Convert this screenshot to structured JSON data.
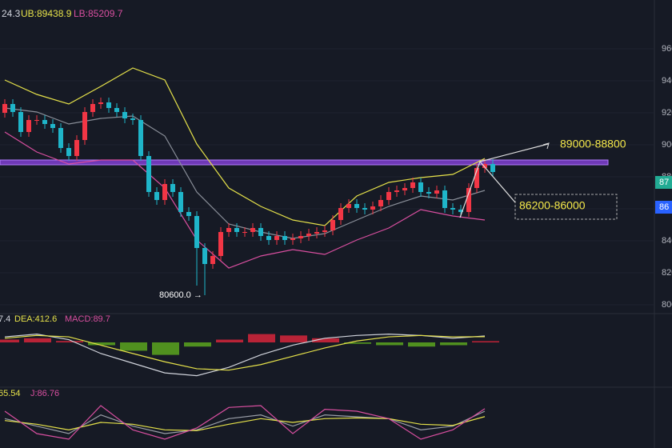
{
  "chart_data": {
    "type": "candlestick",
    "bb_label": "24.3",
    "ub_label": "UB:89438.9",
    "lb_label": "LB:85209.7",
    "categories": [
      null,
      null,
      null,
      null,
      null,
      null,
      null,
      null,
      null,
      null,
      null,
      null,
      null,
      null,
      null,
      null,
      null,
      null,
      null,
      null,
      null,
      null,
      null,
      null,
      null,
      null,
      null,
      null,
      null,
      null,
      null,
      null,
      null,
      null,
      null,
      null,
      null,
      null,
      null,
      null,
      null,
      null,
      null,
      null,
      null,
      null,
      null,
      null,
      null,
      null,
      null,
      null,
      null,
      null,
      null,
      null,
      null,
      null,
      null,
      null,
      null,
      null
    ],
    "open": [
      92000,
      92550,
      92050,
      90800,
      91550,
      91550,
      91300,
      91050,
      89800,
      89300,
      90300,
      92050,
      92550,
      92650,
      92300,
      92050,
      91650,
      91550,
      89300,
      87050,
      86550,
      87550,
      87050,
      85800,
      85550,
      83550,
      82550,
      83050,
      84550,
      84800,
      84550,
      84550,
      84800,
      84300,
      84050,
      84300,
      84050,
      84150,
      84300,
      84450,
      84550,
      84650,
      85300,
      86050,
      86300,
      86050,
      85950,
      86150,
      86550,
      87050,
      87150,
      87300,
      87650,
      87050,
      86950,
      87150,
      86050,
      85950,
      85800,
      87300,
      88550,
      88800
    ],
    "high": [
      92850,
      92850,
      92350,
      91850,
      91850,
      91850,
      91600,
      91350,
      90100,
      90600,
      92350,
      92850,
      92950,
      92950,
      92600,
      92350,
      91950,
      91850,
      89600,
      87350,
      87850,
      87850,
      87350,
      86100,
      85850,
      83850,
      83350,
      84850,
      85100,
      85100,
      84850,
      85100,
      85100,
      84600,
      84600,
      84600,
      84450,
      84600,
      84750,
      84850,
      84950,
      85600,
      86350,
      86600,
      86600,
      86350,
      86450,
      86850,
      87350,
      87450,
      87600,
      87950,
      87950,
      87350,
      87450,
      87450,
      86350,
      86250,
      87600,
      88850,
      89100,
      89100
    ],
    "low": [
      91700,
      91750,
      90500,
      90500,
      91250,
      91000,
      90750,
      89500,
      89000,
      89000,
      90000,
      91750,
      92250,
      92000,
      91750,
      91350,
      91250,
      89000,
      86750,
      86250,
      86250,
      86750,
      85500,
      85250,
      81200,
      80600,
      82250,
      82750,
      84250,
      84250,
      84250,
      84250,
      84000,
      83750,
      83750,
      83750,
      83750,
      83850,
      84000,
      84150,
      84250,
      84350,
      85000,
      85750,
      85750,
      85650,
      85650,
      85850,
      86250,
      86750,
      86850,
      87000,
      86750,
      86650,
      86650,
      85750,
      85650,
      85500,
      85500,
      87000,
      88250,
      88000
    ],
    "close": [
      92550,
      92050,
      90800,
      91550,
      91550,
      91300,
      91050,
      89800,
      89300,
      90300,
      92050,
      92550,
      92650,
      92300,
      92050,
      91650,
      91550,
      89300,
      87050,
      86550,
      87550,
      87050,
      85800,
      85550,
      83550,
      82550,
      83050,
      84550,
      84800,
      84550,
      84550,
      84800,
      84300,
      84050,
      84300,
      84050,
      84150,
      84300,
      84450,
      84550,
      84650,
      85300,
      86050,
      86300,
      86050,
      85950,
      86150,
      86550,
      87050,
      87150,
      87300,
      87650,
      87050,
      86950,
      87150,
      86050,
      85950,
      85800,
      87300,
      88550,
      88800,
      88300
    ],
    "up_color": "#f23645",
    "down_color": "#1fb5c9",
    "ylim": [
      79550,
      99050
    ],
    "yticks": [
      80000,
      82000,
      84000,
      86000,
      88000,
      90000,
      92000,
      94000,
      96000
    ],
    "bands": {
      "x": [
        0,
        4,
        8,
        12,
        16,
        20,
        24,
        28,
        32,
        36,
        40,
        44,
        48,
        52,
        56,
        60
      ],
      "series": [
        {
          "color": "#e6e24a",
          "values": [
            94050,
            93150,
            92550,
            93650,
            94800,
            94050,
            90050,
            87300,
            86150,
            85300,
            84950,
            86800,
            87650,
            87950,
            88150,
            89150
          ]
        },
        {
          "color": "#8a8f99",
          "values": [
            92300,
            92050,
            91300,
            91650,
            91800,
            90550,
            87050,
            85050,
            84550,
            84150,
            84450,
            85300,
            86150,
            86800,
            86550,
            87150
          ]
        },
        {
          "color": "#d94fa0",
          "values": [
            90800,
            89550,
            88800,
            89050,
            89050,
            87300,
            84050,
            82300,
            83050,
            83450,
            83150,
            84050,
            84800,
            85950,
            85550,
            85300
          ]
        }
      ]
    },
    "zone": [
      88750,
      89050
    ],
    "zone_color": "#8e44e8",
    "annotations": [
      "80600.0 →",
      "89000-88800",
      "86200-86000"
    ],
    "price_tags": [
      {
        "label": "87",
        "color": "#22ab94"
      },
      {
        "label": "86",
        "color": "#2962ff"
      }
    ],
    "macd": {
      "labels": [
        "7.4",
        "DEA:412.6",
        "MACD:89.7"
      ],
      "x": [
        0,
        4,
        8,
        12,
        16,
        20,
        24,
        28,
        32,
        36,
        40,
        44,
        48,
        52,
        56,
        60
      ],
      "ylim": [
        -3000,
        1500
      ],
      "dif": [
        400,
        600,
        200,
        -800,
        -1500,
        -2200,
        -2400,
        -1800,
        -900,
        -200,
        300,
        500,
        600,
        500,
        300,
        460
      ],
      "dea": [
        300,
        500,
        400,
        -200,
        -800,
        -1400,
        -1900,
        -2000,
        -1600,
        -1000,
        -400,
        100,
        400,
        500,
        400,
        412.6
      ],
      "hist": [
        200,
        300,
        100,
        -200,
        -600,
        -900,
        -300,
        200,
        600,
        500,
        300,
        -100,
        -200,
        -300,
        -200,
        89.7
      ]
    },
    "kdj": {
      "labels": [
        "65.54",
        "J:86.76"
      ],
      "x": [
        0,
        4,
        8,
        12,
        16,
        20,
        24,
        28,
        32,
        36,
        40,
        44,
        48,
        52,
        56,
        60
      ],
      "ylim": [
        -10,
        110
      ],
      "k": [
        60,
        40,
        20,
        70,
        40,
        20,
        30,
        60,
        70,
        40,
        70,
        65,
        60,
        30,
        40,
        80
      ],
      "d": [
        55,
        45,
        30,
        50,
        45,
        30,
        28,
        45,
        60,
        50,
        60,
        62,
        60,
        45,
        42,
        65.54
      ],
      "j": [
        80,
        20,
        5,
        95,
        30,
        5,
        35,
        90,
        95,
        20,
        85,
        80,
        60,
        5,
        30,
        86.76
      ]
    }
  }
}
